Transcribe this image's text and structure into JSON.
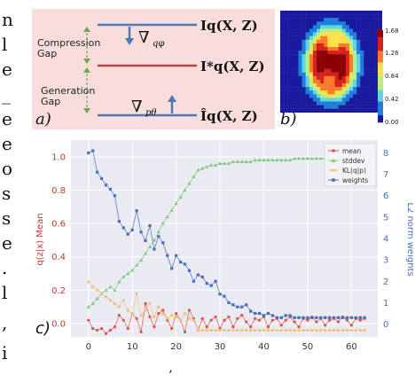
{
  "margin_text": [
    "n",
    "l",
    "e",
    "_",
    "e",
    "e",
    "o",
    "s",
    "s",
    "e",
    ".",
    "l",
    ",",
    "i"
  ],
  "panel_a": {
    "label": "a)",
    "compression_gap": [
      "Compression",
      "Gap"
    ],
    "generation_gap": [
      "Generation",
      "Gap"
    ],
    "grad_phi": "∇",
    "grad_phi_sub": "qφ",
    "grad_theta": "∇",
    "grad_theta_sub": "pθ",
    "line_top_label": "Iq(X, Z)",
    "line_mid_label": "I*q(X, Z)",
    "line_bot_label": "Îq(X, Z)",
    "colors": {
      "background": "#f9dddd",
      "top_line": "#4a78b8",
      "mid_line": "#c4403a",
      "bot_line": "#4a78b8",
      "arrow": "#4a78b8",
      "gap_arrow": "#6aa84f"
    }
  },
  "panel_b": {
    "label": "b)",
    "colorbar_ticks": [
      "1.68",
      "1.26",
      "0.84",
      "0.42",
      "0.00"
    ],
    "colormap": [
      "#8b0000",
      "#d82020",
      "#ff7a2a",
      "#ffe14a",
      "#b8f07a",
      "#5fd6e6",
      "#1f7fd8",
      "#1a1aa0"
    ]
  },
  "panel_c": {
    "label": "c)",
    "ylabel_left": "q(z|x) Mean",
    "ylabel_right": "L2 norm weights",
    "x_ticks": [
      "0",
      "10",
      "20",
      "30",
      "40",
      "50",
      "60"
    ],
    "y_left_ticks": [
      "1.0",
      "0.8",
      "0.6",
      "0.4",
      "0.2",
      "0.0"
    ],
    "y_right_ticks": [
      "8",
      "7",
      "6",
      "5",
      "4",
      "3",
      "2",
      "1",
      "0"
    ],
    "legend": [
      "mean",
      "stddev",
      "KL(q|p)",
      "weights"
    ],
    "colors": {
      "mean": "#d9534f",
      "stddev": "#7fc97f",
      "kl": "#f0c27a",
      "weights": "#4a6fb5",
      "left_axis": "#c0392b",
      "right_axis": "#4a6fb5"
    }
  },
  "chart_data": {
    "type": "line",
    "x": [
      0,
      1,
      2,
      3,
      4,
      5,
      6,
      7,
      8,
      9,
      10,
      11,
      12,
      13,
      14,
      15,
      16,
      17,
      18,
      19,
      20,
      21,
      22,
      23,
      24,
      25,
      26,
      27,
      28,
      29,
      30,
      31,
      32,
      33,
      34,
      35,
      36,
      37,
      38,
      39,
      40,
      41,
      42,
      43,
      44,
      45,
      46,
      47,
      48,
      49,
      50,
      51,
      52,
      53,
      54,
      55,
      56,
      57,
      58,
      59,
      60,
      61,
      62,
      63
    ],
    "xlim": [
      -4,
      66
    ],
    "ylim_left": [
      -0.08,
      1.1
    ],
    "ylim_right": [
      -0.6,
      8.6
    ],
    "series": [
      {
        "name": "mean",
        "axis": "left",
        "values": [
          0.02,
          -0.03,
          -0.04,
          -0.03,
          -0.06,
          -0.04,
          -0.02,
          0.05,
          0.02,
          -0.03,
          0.06,
          0.03,
          -0.05,
          0.12,
          0.04,
          -0.02,
          0.06,
          0.08,
          0.02,
          -0.03,
          0.06,
          0.02,
          -0.05,
          0.08,
          0.03,
          -0.04,
          0.03,
          -0.02,
          0.02,
          0.04,
          -0.03,
          0.02,
          0.04,
          -0.02,
          0.03,
          0.05,
          0.01,
          -0.02,
          0.03,
          0.02,
          0.04,
          -0.02,
          0.02,
          0.03,
          -0.01,
          0.02,
          0.04,
          0.01,
          -0.02,
          0.03,
          0.02,
          0.04,
          0.01,
          0.03,
          -0.01,
          0.02,
          0.03,
          0.01,
          0.04,
          0.02,
          -0.01,
          0.03,
          0.02,
          0.03
        ]
      },
      {
        "name": "stddev",
        "axis": "left",
        "values": [
          0.1,
          0.12,
          0.15,
          0.18,
          0.2,
          0.22,
          0.2,
          0.25,
          0.28,
          0.3,
          0.32,
          0.35,
          0.38,
          0.42,
          0.46,
          0.5,
          0.55,
          0.6,
          0.64,
          0.68,
          0.72,
          0.76,
          0.8,
          0.84,
          0.88,
          0.92,
          0.93,
          0.94,
          0.95,
          0.95,
          0.96,
          0.96,
          0.96,
          0.97,
          0.97,
          0.97,
          0.97,
          0.97,
          0.98,
          0.98,
          0.98,
          0.98,
          0.98,
          0.98,
          0.98,
          0.98,
          0.98,
          0.99,
          0.99,
          0.99,
          0.99,
          0.99,
          0.99,
          0.99,
          0.99,
          0.99,
          0.99,
          0.99,
          0.99,
          0.99,
          0.99,
          0.99,
          0.99,
          0.99
        ]
      },
      {
        "name": "KL(q|p)",
        "axis": "left",
        "values": [
          0.25,
          0.22,
          0.2,
          0.18,
          0.16,
          0.14,
          0.12,
          0.1,
          0.14,
          0.08,
          0.06,
          0.18,
          0.05,
          0.08,
          0.12,
          0.04,
          0.1,
          0.06,
          0.03,
          0.05,
          0.04,
          0.02,
          0.06,
          0.03,
          0.02,
          -0.04,
          -0.04,
          -0.04,
          -0.04,
          -0.04,
          -0.04,
          -0.04,
          -0.04,
          -0.04,
          -0.04,
          -0.04,
          -0.04,
          -0.04,
          -0.04,
          -0.04,
          -0.04,
          -0.04,
          -0.04,
          -0.04,
          -0.04,
          -0.04,
          -0.04,
          -0.04,
          -0.04,
          -0.04,
          -0.04,
          -0.04,
          -0.04,
          -0.04,
          -0.04,
          -0.04,
          -0.04,
          -0.04,
          -0.04,
          -0.04,
          -0.04,
          -0.04,
          -0.04,
          -0.04
        ]
      },
      {
        "name": "weights",
        "axis": "right",
        "values": [
          8.0,
          8.1,
          7.1,
          6.8,
          6.5,
          6.3,
          6.0,
          4.8,
          4.5,
          4.2,
          4.4,
          5.3,
          4.3,
          3.9,
          4.6,
          3.5,
          4.1,
          3.8,
          3.2,
          2.6,
          3.2,
          2.9,
          2.8,
          2.5,
          2.0,
          2.3,
          2.2,
          1.9,
          1.8,
          2.0,
          1.4,
          1.3,
          1.0,
          0.9,
          0.8,
          0.8,
          0.9,
          0.6,
          0.5,
          0.5,
          0.4,
          0.5,
          0.4,
          0.3,
          0.3,
          0.4,
          0.4,
          0.3,
          0.3,
          0.3,
          0.3,
          0.3,
          0.3,
          0.3,
          0.3,
          0.3,
          0.3,
          0.3,
          0.3,
          0.3,
          0.3,
          0.3,
          0.3,
          0.3
        ]
      }
    ],
    "grid": true,
    "legend_position": "top-right"
  },
  "bottom_fragment": "’"
}
